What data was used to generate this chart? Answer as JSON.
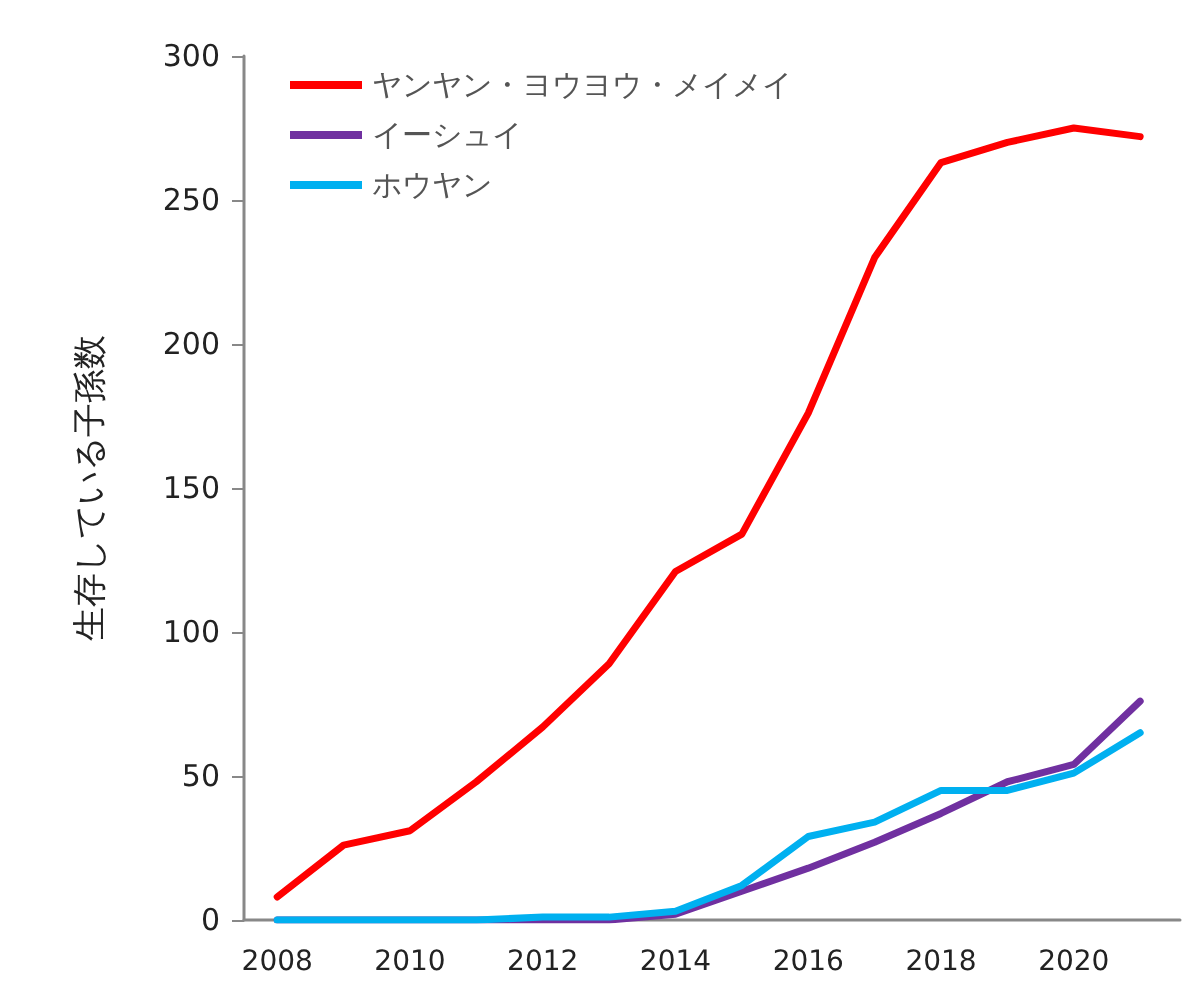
{
  "chart_data": {
    "type": "line",
    "ylabel": "生存している子孫数",
    "x": [
      2008,
      2009,
      2010,
      2011,
      2012,
      2013,
      2014,
      2015,
      2016,
      2017,
      2018,
      2019,
      2020,
      2021
    ],
    "series": [
      {
        "name": "ヤンヤン・ヨウヨウ・メイメイ",
        "color": "#ff0000",
        "values": [
          8,
          26,
          31,
          48,
          67,
          89,
          121,
          134,
          176,
          230,
          263,
          270,
          275,
          272
        ]
      },
      {
        "name": "イーシュイ",
        "color": "#7030a0",
        "values": [
          0,
          0,
          0,
          0,
          0,
          0,
          2,
          10,
          18,
          27,
          37,
          48,
          54,
          76
        ]
      },
      {
        "name": "ホウヤン",
        "color": "#00b0f0",
        "values": [
          0,
          0,
          0,
          0,
          1,
          1,
          3,
          12,
          29,
          34,
          45,
          45,
          51,
          65
        ]
      }
    ],
    "xlim": [
      2007.5,
      2021.6
    ],
    "xticks": [
      2008,
      2010,
      2012,
      2014,
      2016,
      2018,
      2020
    ],
    "ylim": [
      0,
      300
    ],
    "yticks": [
      0,
      50,
      100,
      150,
      200,
      250,
      300
    ],
    "grid": false,
    "legend": "top left",
    "marker": "none",
    "line_style": "solid"
  }
}
